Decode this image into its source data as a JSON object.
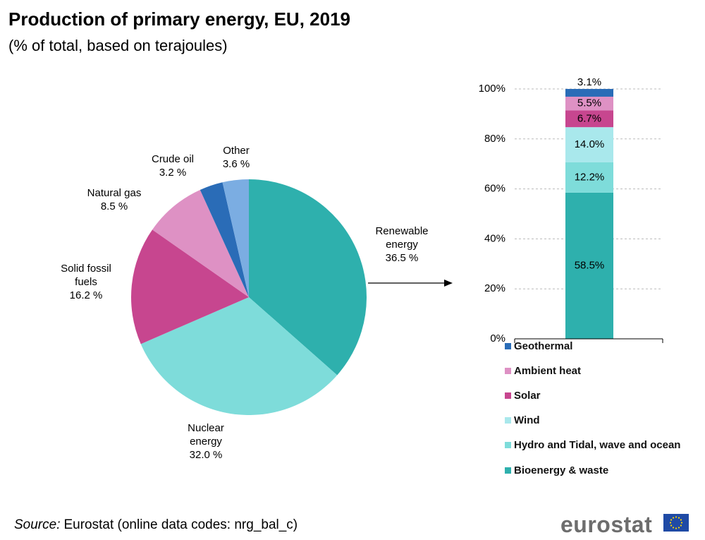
{
  "title": "Production of primary energy, EU, 2019",
  "subtitle": "(% of total, based on terajoules)",
  "source_label": "Source:",
  "source": "Eurostat (online data codes: nrg_bal_c)",
  "logo": "eurostat",
  "chart_data": [
    {
      "type": "pie",
      "categories": [
        "Renewable energy",
        "Nuclear energy",
        "Solid fossil fuels",
        "Natural gas",
        "Crude oil",
        "Other"
      ],
      "values": [
        36.5,
        32.0,
        16.2,
        8.5,
        3.2,
        3.6
      ],
      "value_labels": [
        "36.5 %",
        "32.0 %",
        "16.2 %",
        "8.5 %",
        "3.2 %",
        "3.6 %"
      ],
      "colors": [
        "#2eb0ad",
        "#7edcda",
        "#c7468f",
        "#de91c4",
        "#2a6cb7",
        "#7bade2"
      ]
    },
    {
      "type": "stacked_bar",
      "series": [
        {
          "name": "Bioenergy & waste",
          "color": "#2eb0ad",
          "values": [
            58.5
          ],
          "value_labels": [
            "58.5%"
          ]
        },
        {
          "name": "Hydro and Tidal, wave and ocean",
          "color": "#7edcda",
          "values": [
            12.2
          ],
          "value_labels": [
            "12.2%"
          ]
        },
        {
          "name": "Wind",
          "color": "#a9e8ec",
          "values": [
            14.0
          ],
          "value_labels": [
            "14.0%"
          ]
        },
        {
          "name": "Solar",
          "color": "#c7468f",
          "values": [
            6.7
          ],
          "value_labels": [
            "6.7%"
          ]
        },
        {
          "name": "Ambient heat",
          "color": "#de91c4",
          "values": [
            5.5
          ],
          "value_labels": [
            "5.5%"
          ]
        },
        {
          "name": "Geothermal",
          "color": "#2a6cb7",
          "values": [
            3.1
          ],
          "value_labels": [
            "3.1%"
          ]
        }
      ],
      "ylim": [
        0,
        100
      ],
      "yticks": [
        {
          "value": 0,
          "label": "0%"
        },
        {
          "value": 20,
          "label": "20%"
        },
        {
          "value": 40,
          "label": "40%"
        },
        {
          "value": 60,
          "label": "60%"
        },
        {
          "value": 80,
          "label": "80%"
        },
        {
          "value": 100,
          "label": "100%"
        }
      ],
      "grid": true
    }
  ]
}
